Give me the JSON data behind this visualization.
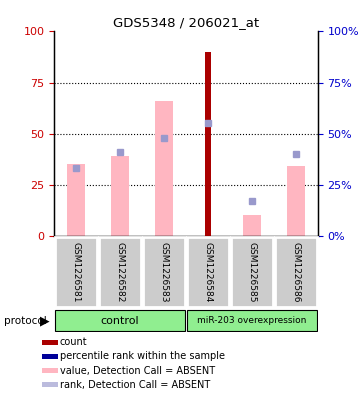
{
  "title": "GDS5348 / 206021_at",
  "samples": [
    "GSM1226581",
    "GSM1226582",
    "GSM1226583",
    "GSM1226584",
    "GSM1226585",
    "GSM1226586"
  ],
  "value_bars": [
    35,
    39,
    66,
    null,
    10,
    34
  ],
  "rank_dots": [
    33,
    41,
    48,
    55,
    17,
    40
  ],
  "count_bars": [
    null,
    null,
    null,
    90,
    null,
    null
  ],
  "count_color": "#AA0000",
  "value_bar_color": "#FFB6C1",
  "rank_dot_color": "#9999CC",
  "count_bar_width": 0.15,
  "value_bar_width": 0.4,
  "ylim": [
    0,
    100
  ],
  "yticks": [
    0,
    25,
    50,
    75,
    100
  ],
  "left_ytick_color": "#CC0000",
  "right_ytick_color": "#0000CC",
  "label_area_color": "#CCCCCC",
  "label_border_color": "#FFFFFF",
  "group_color": "#90EE90",
  "group_border_color": "#000000",
  "legend_items": [
    {
      "label": "count",
      "color": "#AA0000"
    },
    {
      "label": "percentile rank within the sample",
      "color": "#000099"
    },
    {
      "label": "value, Detection Call = ABSENT",
      "color": "#FFB6C1"
    },
    {
      "label": "rank, Detection Call = ABSENT",
      "color": "#BBBBDD"
    }
  ],
  "figsize": [
    3.61,
    3.93
  ],
  "dpi": 100
}
